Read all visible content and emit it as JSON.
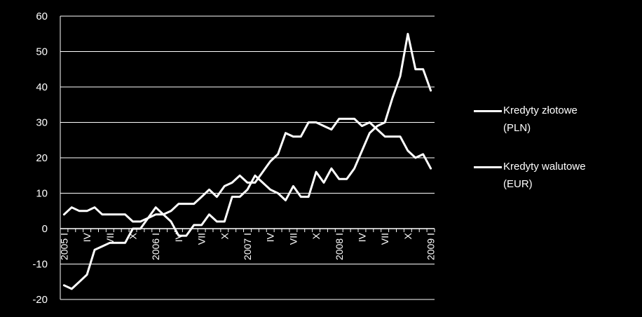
{
  "chart_data": {
    "type": "line",
    "title": "",
    "xlabel": "",
    "ylabel": "",
    "ylim": [
      -20,
      60
    ],
    "yticks": [
      60,
      50,
      40,
      30,
      20,
      10,
      0,
      -10,
      -20
    ],
    "grid": true,
    "legend_position": "right",
    "months": 49,
    "x_tick_labels": [
      {
        "label": "2005 I",
        "month": 0
      },
      {
        "label": "IV",
        "month": 3
      },
      {
        "label": "VII",
        "month": 6
      },
      {
        "label": "X",
        "month": 9
      },
      {
        "label": "2006 I",
        "month": 12
      },
      {
        "label": "IV",
        "month": 15
      },
      {
        "label": "VII",
        "month": 18
      },
      {
        "label": "X",
        "month": 21
      },
      {
        "label": "2007 I",
        "month": 24
      },
      {
        "label": "IV",
        "month": 27
      },
      {
        "label": "VII",
        "month": 30
      },
      {
        "label": "X",
        "month": 33
      },
      {
        "label": "2008 I",
        "month": 36
      },
      {
        "label": "IV",
        "month": 39
      },
      {
        "label": "VII",
        "month": 42
      },
      {
        "label": "X",
        "month": 45
      },
      {
        "label": "2009 I",
        "month": 48
      }
    ],
    "series": [
      {
        "name": "Kredyty złotowe\n(PLN)",
        "color": "#ffffff",
        "values": [
          -16,
          -17,
          -15,
          -13,
          -6,
          -5,
          -4,
          -4,
          -4,
          0,
          0,
          3,
          6,
          4,
          2,
          -2,
          -2,
          1,
          1,
          4,
          2,
          2,
          9,
          9,
          11,
          15,
          13,
          11,
          10,
          8,
          12,
          9,
          9,
          16,
          13,
          17,
          14,
          14,
          17,
          22,
          27,
          29,
          30,
          37,
          43,
          55,
          45,
          45,
          39
        ]
      },
      {
        "name": "Kredyty walutowe\n(EUR)",
        "color": "#ffffff",
        "values": [
          4,
          6,
          5,
          5,
          6,
          4,
          4,
          4,
          4,
          2,
          2,
          3,
          4,
          4,
          5,
          7,
          7,
          7,
          9,
          11,
          9,
          12,
          13,
          15,
          13,
          13,
          16,
          19,
          21,
          27,
          26,
          26,
          30,
          30,
          29,
          28,
          31,
          31,
          31,
          29,
          30,
          28,
          26,
          26,
          26,
          22,
          20,
          21,
          17
        ]
      }
    ]
  }
}
